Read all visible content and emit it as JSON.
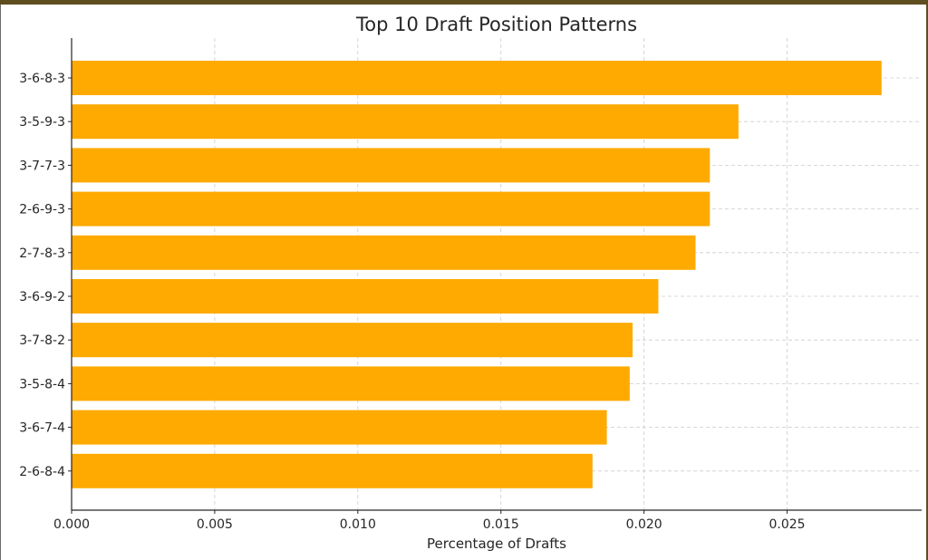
{
  "chart_data": {
    "type": "bar",
    "orientation": "horizontal",
    "title": "Top 10 Draft Position Patterns",
    "xlabel": "Percentage of Drafts",
    "ylabel": "",
    "categories": [
      "3-6-8-3",
      "3-5-9-3",
      "3-7-7-3",
      "2-6-9-3",
      "2-7-8-3",
      "3-6-9-2",
      "3-7-8-2",
      "3-5-8-4",
      "3-6-7-4",
      "2-6-8-4"
    ],
    "values": [
      0.0283,
      0.0233,
      0.0223,
      0.0223,
      0.0218,
      0.0205,
      0.0196,
      0.0195,
      0.0187,
      0.0182
    ],
    "xlim": [
      0,
      0.0297
    ],
    "xticks": [
      0.0,
      0.005,
      0.01,
      0.015,
      0.02,
      0.025
    ],
    "xtick_labels": [
      "0.000",
      "0.005",
      "0.010",
      "0.015",
      "0.020",
      "0.025"
    ],
    "grid": true,
    "colors": {
      "bar": "#ffaa00",
      "grid": "#cccccc",
      "axis": "#262626"
    }
  }
}
